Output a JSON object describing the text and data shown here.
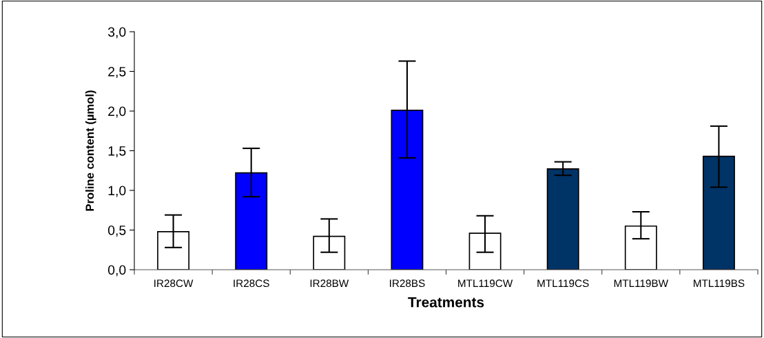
{
  "chart_data": {
    "type": "bar",
    "xlabel": "Treatments",
    "ylabel": "Proline content (µmol)",
    "categories": [
      "IR28CW",
      "IR28CS",
      "IR28BW",
      "IR28BS",
      "MTL119CW",
      "MTL119CS",
      "MTL119BW",
      "MTL119BS"
    ],
    "values": [
      0.48,
      1.22,
      0.42,
      2.01,
      0.46,
      1.27,
      0.55,
      1.43
    ],
    "errors": [
      [
        0.28,
        0.69
      ],
      [
        0.92,
        1.53
      ],
      [
        0.22,
        0.64
      ],
      [
        1.41,
        2.63
      ],
      [
        0.22,
        0.68
      ],
      [
        1.19,
        1.36
      ],
      [
        0.39,
        0.73
      ],
      [
        1.04,
        1.81
      ]
    ],
    "colors": [
      "#ffffff",
      "#0000ff",
      "#ffffff",
      "#0000ff",
      "#ffffff",
      "#003366",
      "#ffffff",
      "#003366"
    ],
    "ylim": [
      0,
      3
    ],
    "yticks": [
      {
        "value": 0,
        "label": "0,0"
      },
      {
        "value": 0.5,
        "label": "0,5"
      },
      {
        "value": 1,
        "label": "1,0"
      },
      {
        "value": 1.5,
        "label": "1,5"
      },
      {
        "value": 2,
        "label": "2,0"
      },
      {
        "value": 2.5,
        "label": "2,5"
      },
      {
        "value": 3,
        "label": "3,0"
      }
    ],
    "grid": false,
    "legend": false
  }
}
